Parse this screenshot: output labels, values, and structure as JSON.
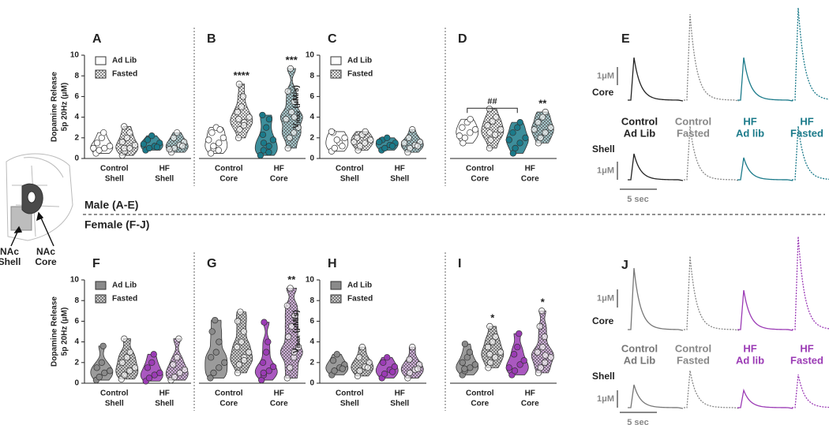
{
  "chart_data": [
    {
      "type": "violin",
      "panel": "A",
      "y_label": [
        "Dopamine Release",
        "5p 20Hz (μM)"
      ],
      "ylim": [
        0,
        10
      ],
      "yticks": [
        0,
        2,
        4,
        6,
        8,
        10
      ],
      "categories": [
        [
          "Control",
          "Shell"
        ],
        [
          "HF",
          "Shell"
        ]
      ],
      "category_colors": [
        "#ffffff",
        "#1b7a8a"
      ],
      "legend": "upper-left",
      "series": [
        {
          "name": "Ad Lib",
          "values": [
            [
              0.5,
              0.8,
              1,
              1.2,
              1.5,
              2,
              2.5,
              1
            ],
            [
              0.8,
              1,
              1.2,
              1.5,
              1.8,
              2.2,
              1.1,
              1.4
            ]
          ]
        },
        {
          "name": "Fasted",
          "values": [
            [
              0.3,
              0.7,
              1,
              1.3,
              1.6,
              2,
              2.5,
              3.1,
              1
            ],
            [
              0.6,
              1,
              1.3,
              1.6,
              2,
              2.5,
              1.2,
              0.9
            ]
          ]
        }
      ]
    },
    {
      "type": "violin",
      "panel": "B",
      "ylim": [
        0,
        10
      ],
      "categories": [
        [
          "Control",
          "Core"
        ],
        [
          "HF",
          "Core"
        ]
      ],
      "category_colors": [
        "#ffffff",
        "#1b7a8a"
      ],
      "series": [
        {
          "values": [
            [
              0.5,
              1,
              1.5,
              2,
              2.5,
              3,
              2.8,
              1.8,
              1.2,
              0.8
            ],
            [
              0.3,
              0.8,
              1.2,
              1.8,
              2.3,
              3,
              3.8,
              4.2,
              1.5,
              0.6
            ]
          ]
        },
        {
          "values": [
            [
              2,
              2.8,
              3.5,
              4,
              4.5,
              5,
              6,
              7.2,
              3.8,
              3.2
            ],
            [
              1,
              2,
              2.5,
              3,
              3.8,
              4.5,
              5.5,
              6.5,
              8.7,
              4
            ]
          ]
        }
      ],
      "annotations": [
        {
          "text": "****",
          "category": 0,
          "series": 1
        },
        {
          "text": "***",
          "category": 1,
          "series": 1
        }
      ]
    },
    {
      "type": "violin",
      "panel": "C",
      "y_label_main": "V",
      "y_label_sub": "max",
      "y_label_unit": " (μM/s)",
      "ylim": [
        0,
        10
      ],
      "yticks": [
        0,
        2,
        4,
        6,
        8,
        10
      ],
      "categories": [
        [
          "Control",
          "Shell"
        ],
        [
          "HF",
          "Shell"
        ]
      ],
      "category_colors": [
        "#ffffff",
        "#1b7a8a"
      ],
      "legend": "upper-left",
      "series": [
        {
          "name": "Ad Lib",
          "values": [
            [
              0.7,
              1,
              1.5,
              2,
              2.5,
              1.8,
              1.2,
              2.6
            ],
            [
              0.8,
              1,
              1.3,
              1.5,
              1.8,
              2,
              1.2,
              1.6
            ]
          ]
        },
        {
          "name": "Fasted",
          "values": [
            [
              0.8,
              1.2,
              1.5,
              1.8,
              2,
              2.3,
              2.6,
              1.6
            ],
            [
              0.6,
              1,
              1.3,
              1.6,
              2,
              2.8,
              1.2,
              1.5
            ]
          ]
        }
      ]
    },
    {
      "type": "violin",
      "panel": "D",
      "ylim": [
        0,
        10
      ],
      "categories": [
        [
          "Control",
          "Core"
        ],
        [
          "HF",
          "Core"
        ]
      ],
      "category_colors": [
        "#ffffff",
        "#1b7a8a"
      ],
      "series": [
        {
          "values": [
            [
              1.5,
              2,
              2.5,
              2.8,
              3,
              3.5,
              3.8,
              2.2
            ],
            [
              0.5,
              1,
              1.5,
              2,
              2.5,
              3,
              3.5,
              1.8
            ]
          ]
        },
        {
          "values": [
            [
              1,
              1.8,
              2.3,
              2.8,
              3.2,
              3.6,
              4,
              4.8,
              2.5
            ],
            [
              1.5,
              2,
              2.5,
              3,
              3.5,
              4,
              4.5,
              2.8
            ]
          ]
        }
      ],
      "annotations": [
        {
          "text": "**",
          "category": 1,
          "series": 1
        }
      ],
      "brackets": [
        {
          "text": "##",
          "series": 0,
          "from": 0,
          "to": 1
        }
      ]
    },
    {
      "type": "violin",
      "panel": "F",
      "y_label": [
        "Dopamine Release",
        "5p 20Hz (μM)"
      ],
      "ylim": [
        0,
        10
      ],
      "yticks": [
        0,
        2,
        4,
        6,
        8,
        10
      ],
      "categories": [
        [
          "Control",
          "Shell"
        ],
        [
          "HF",
          "Shell"
        ]
      ],
      "category_colors": [
        "#8a8a8a",
        "#9b3bb5"
      ],
      "legend": "upper-left",
      "series": [
        {
          "name": "Ad Lib",
          "values": [
            [
              0.3,
              0.6,
              1,
              1.2,
              1.5,
              2,
              3.6
            ],
            [
              0.2,
              0.5,
              0.8,
              1,
              1.5,
              2,
              2.8
            ]
          ]
        },
        {
          "name": "Fasted",
          "values": [
            [
              0.4,
              0.8,
              1.2,
              1.5,
              2,
              2.5,
              3,
              4.3
            ],
            [
              0.3,
              0.6,
              1,
              1.3,
              1.8,
              2.5,
              4.3
            ]
          ]
        }
      ]
    },
    {
      "type": "violin",
      "panel": "G",
      "ylim": [
        0,
        10
      ],
      "categories": [
        [
          "Control",
          "Core"
        ],
        [
          "HF",
          "Core"
        ]
      ],
      "category_colors": [
        "#8a8a8a",
        "#9b3bb5"
      ],
      "series": [
        {
          "values": [
            [
              0.5,
              1,
              1.5,
              2,
              2.5,
              3,
              4,
              5,
              6.1
            ],
            [
              0.3,
              0.8,
              1.2,
              1.6,
              2,
              3,
              4,
              5.9,
              1
            ]
          ]
        },
        {
          "values": [
            [
              1,
              1.8,
              2.5,
              3,
              3.5,
              4,
              5,
              6,
              6.9,
              2.2
            ],
            [
              0.5,
              1.5,
              2.5,
              3.5,
              4.5,
              5.5,
              6.5,
              7.5,
              9.2,
              3
            ]
          ]
        }
      ],
      "annotations": [
        {
          "text": "**",
          "category": 1,
          "series": 1
        }
      ]
    },
    {
      "type": "violin",
      "panel": "H",
      "y_label_main": "V",
      "y_label_sub": "max",
      "y_label_unit": " (μM/s)",
      "ylim": [
        0,
        10
      ],
      "yticks": [
        0,
        2,
        4,
        6,
        8,
        10
      ],
      "categories": [
        [
          "Control",
          "Shell"
        ],
        [
          "HF",
          "Shell"
        ]
      ],
      "category_colors": [
        "#8a8a8a",
        "#9b3bb5"
      ],
      "legend": "upper-left",
      "series": [
        {
          "name": "Ad Lib",
          "values": [
            [
              0.8,
              1.2,
              1.5,
              1.8,
              2.2,
              2.8,
              1.4
            ],
            [
              0.5,
              0.9,
              1.3,
              1.6,
              2,
              2.5,
              1.1
            ]
          ]
        },
        {
          "name": "Fasted",
          "values": [
            [
              0.7,
              1.2,
              1.6,
              2,
              2.5,
              3.5,
              1.5
            ],
            [
              0.5,
              1,
              1.3,
              1.8,
              2.3,
              3.5,
              1.4
            ]
          ]
        }
      ]
    },
    {
      "type": "violin",
      "panel": "I",
      "ylim": [
        0,
        10
      ],
      "categories": [
        [
          "Control",
          "Core"
        ],
        [
          "HF",
          "Core"
        ]
      ],
      "category_colors": [
        "#8a8a8a",
        "#9b3bb5"
      ],
      "series": [
        {
          "values": [
            [
              0.8,
              1.2,
              1.5,
              1.8,
              2,
              2.5,
              3,
              3.8,
              1.4
            ],
            [
              0.8,
              1.2,
              1.8,
              2.2,
              2.8,
              3.5,
              4.8,
              1.5
            ]
          ]
        },
        {
          "values": [
            [
              1.5,
              2,
              2.5,
              3,
              3.5,
              4,
              4.5,
              5.5,
              2.8
            ],
            [
              1,
              1.5,
              2,
              2.5,
              3,
              3.5,
              4.5,
              5.5,
              7,
              2.7
            ]
          ]
        }
      ],
      "annotations": [
        {
          "text": "*",
          "category": 0,
          "series": 1
        },
        {
          "text": "*",
          "category": 1,
          "series": 1
        }
      ]
    }
  ],
  "figure": {
    "male_label": "Male (A-E)",
    "female_label": "Female (F-J)",
    "brain_labels": [
      [
        "NAc",
        "Shell"
      ],
      [
        "NAc",
        "Core"
      ]
    ],
    "traces": [
      {
        "panel": "E",
        "rows": [
          "Core",
          "Shell"
        ],
        "scale_y": "1μM",
        "scale_x": "5 sec",
        "columns": [
          {
            "lines": [
              "Control",
              "Ad Lib"
            ],
            "color": "#222222"
          },
          {
            "lines": [
              "Control",
              "Fasted"
            ],
            "color": "#888888"
          },
          {
            "lines": [
              "HF",
              "Ad lib"
            ],
            "color": "#1b7a8a"
          },
          {
            "lines": [
              "HF",
              "Fasted"
            ],
            "color": "#1b7a8a"
          }
        ]
      },
      {
        "panel": "J",
        "rows": [
          "Core",
          "Shell"
        ],
        "scale_y": "1μM",
        "scale_x": "5 sec",
        "columns": [
          {
            "lines": [
              "Control",
              "Ad Lib"
            ],
            "color": "#777777"
          },
          {
            "lines": [
              "Control",
              "Fasted"
            ],
            "color": "#888888"
          },
          {
            "lines": [
              "HF",
              "Ad lib"
            ],
            "color": "#9b3bb5"
          },
          {
            "lines": [
              "HF",
              "Fasted"
            ],
            "color": "#9b3bb5"
          }
        ]
      }
    ]
  }
}
